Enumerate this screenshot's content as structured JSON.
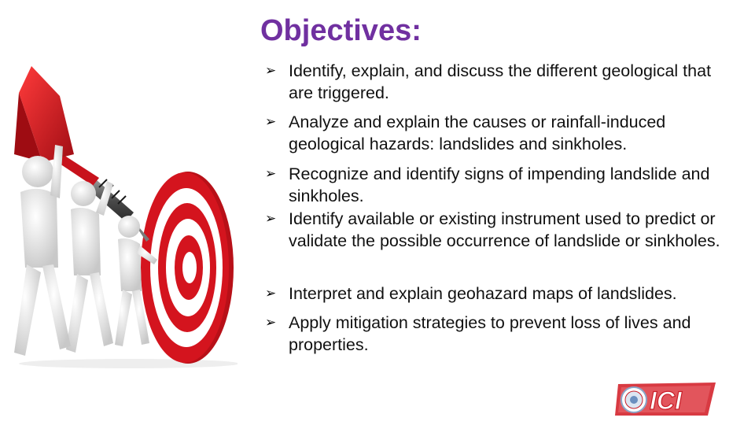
{
  "slide": {
    "title": "Objectives:",
    "bullets": [
      {
        "marker": "➢",
        "text": "Identify, explain, and discuss the different geological that are triggered."
      },
      {
        "marker": "➢",
        "text": "Analyze and explain the causes or rainfall-induced geological hazards: landslides and sinkholes."
      },
      {
        "marker": "➢",
        "text": "Recognize and identify signs of impending landslide and sinkholes."
      },
      {
        "marker": "➢",
        "text": "Identify available or existing instrument used to predict or validate the possible occurrence of landslide or sinkholes."
      },
      {
        "marker": "➢",
        "text": "Interpret and explain geohazard maps of landslides."
      },
      {
        "marker": "➢",
        "text": "Apply mitigation strategies to prevent loss of lives and properties."
      }
    ]
  },
  "logo": {
    "text": "ICI"
  },
  "colors": {
    "title": "#7030a0",
    "target_red": "#d4141e",
    "dart_red": "#c8121c",
    "logo_red": "#c81e28",
    "figure": "#e8e8e8"
  },
  "icons": {
    "bullet": "arrowhead-bullet-icon",
    "illustration": "figures-carrying-dart-to-target",
    "logo_emblem": "seal-emblem-icon"
  }
}
